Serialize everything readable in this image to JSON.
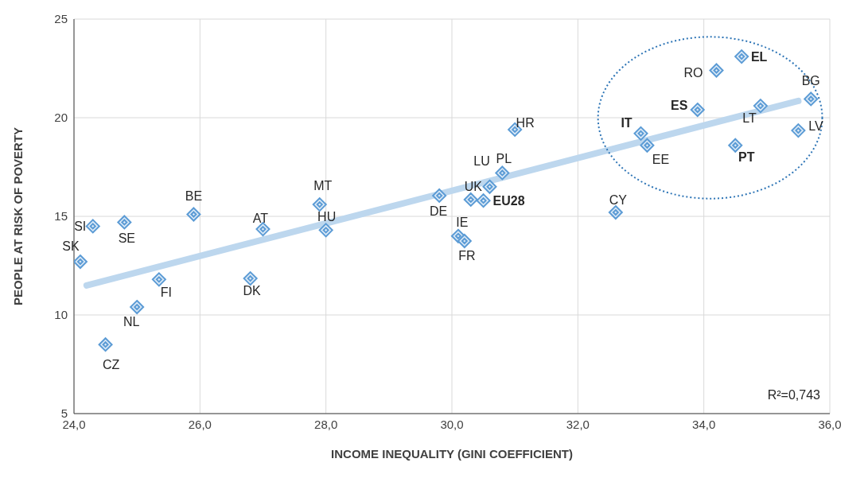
{
  "chart_data": {
    "type": "scatter",
    "xlabel": "INCOME INEQUALITY (GINI COEFFICIENT)",
    "ylabel": "PEOPLE AT RISK OF POVERTY",
    "xlim": [
      24,
      36
    ],
    "xticks": [
      {
        "value": 24,
        "label": "24,0"
      },
      {
        "value": 26,
        "label": "26,0"
      },
      {
        "value": 28,
        "label": "28,0"
      },
      {
        "value": 30,
        "label": "30,0"
      },
      {
        "value": 32,
        "label": "32,0"
      },
      {
        "value": 34,
        "label": "34,0"
      },
      {
        "value": 36,
        "label": "36,0"
      }
    ],
    "ylim": [
      5,
      25
    ],
    "yticks": [
      5,
      10,
      15,
      20,
      25
    ],
    "grid": true,
    "legend": false,
    "series": [
      {
        "marker": "diamond",
        "color": "#5b9bd5",
        "x": [
          24.3,
          24.1,
          24.8,
          25.9,
          24.5,
          25.0,
          25.35,
          26.8,
          27.0,
          27.9,
          28.0,
          29.8,
          30.1,
          30.2,
          30.3,
          30.5,
          30.6,
          30.8,
          31.0,
          32.6,
          33.0,
          33.1,
          33.9,
          34.2,
          34.6,
          34.9,
          34.5,
          35.5,
          35.7
        ],
        "values": [
          14.5,
          12.7,
          14.7,
          15.1,
          8.5,
          10.4,
          11.8,
          11.85,
          14.35,
          15.6,
          14.3,
          16.05,
          14.0,
          13.75,
          15.85,
          15.8,
          16.5,
          17.2,
          19.4,
          15.2,
          19.2,
          18.6,
          20.4,
          22.4,
          23.1,
          20.6,
          18.6,
          19.35,
          20.95
        ]
      },
      {
        "type": "line",
        "marker": "none",
        "color": "#bdd7ee",
        "x": [
          24.2,
          35.5
        ],
        "values": [
          11.5,
          20.85
        ]
      }
    ],
    "annotations": [
      {
        "text": "SI",
        "x": 24.3,
        "y": 14.5
      },
      {
        "text": "SK",
        "x": 24.1,
        "y": 12.7
      },
      {
        "text": "SE",
        "x": 24.8,
        "y": 14.7
      },
      {
        "text": "BE",
        "x": 25.9,
        "y": 15.1
      },
      {
        "text": "CZ",
        "x": 24.5,
        "y": 8.5
      },
      {
        "text": "NL",
        "x": 25.0,
        "y": 10.4
      },
      {
        "text": "FI",
        "x": 25.35,
        "y": 11.8
      },
      {
        "text": "DK",
        "x": 26.8,
        "y": 11.85
      },
      {
        "text": "AT",
        "x": 27.0,
        "y": 14.35
      },
      {
        "text": "MT",
        "x": 27.9,
        "y": 15.6
      },
      {
        "text": "HU",
        "x": 28.0,
        "y": 14.3
      },
      {
        "text": "DE",
        "x": 29.8,
        "y": 16.05
      },
      {
        "text": "IE",
        "x": 30.1,
        "y": 14.0
      },
      {
        "text": "FR",
        "x": 30.2,
        "y": 13.75
      },
      {
        "text": "UK",
        "x": 30.3,
        "y": 15.85
      },
      {
        "text": "EU28",
        "x": 30.5,
        "y": 15.8
      },
      {
        "text": "LU",
        "x": 30.6,
        "y": 16.5
      },
      {
        "text": "PL",
        "x": 30.8,
        "y": 17.2
      },
      {
        "text": "HR",
        "x": 31.0,
        "y": 19.4
      },
      {
        "text": "CY",
        "x": 32.6,
        "y": 15.2
      },
      {
        "text": "IT",
        "x": 33.0,
        "y": 19.2
      },
      {
        "text": "EE",
        "x": 33.1,
        "y": 18.6
      },
      {
        "text": "ES",
        "x": 33.9,
        "y": 20.4
      },
      {
        "text": "RO",
        "x": 34.2,
        "y": 22.4
      },
      {
        "text": "EL",
        "x": 34.6,
        "y": 23.1
      },
      {
        "text": "LT",
        "x": 34.9,
        "y": 20.6
      },
      {
        "text": "PT",
        "x": 34.5,
        "y": 18.6
      },
      {
        "text": "LV",
        "x": 35.5,
        "y": 19.35
      },
      {
        "text": "BG",
        "x": 35.7,
        "y": 20.95
      },
      "R²=0,743"
    ]
  }
}
